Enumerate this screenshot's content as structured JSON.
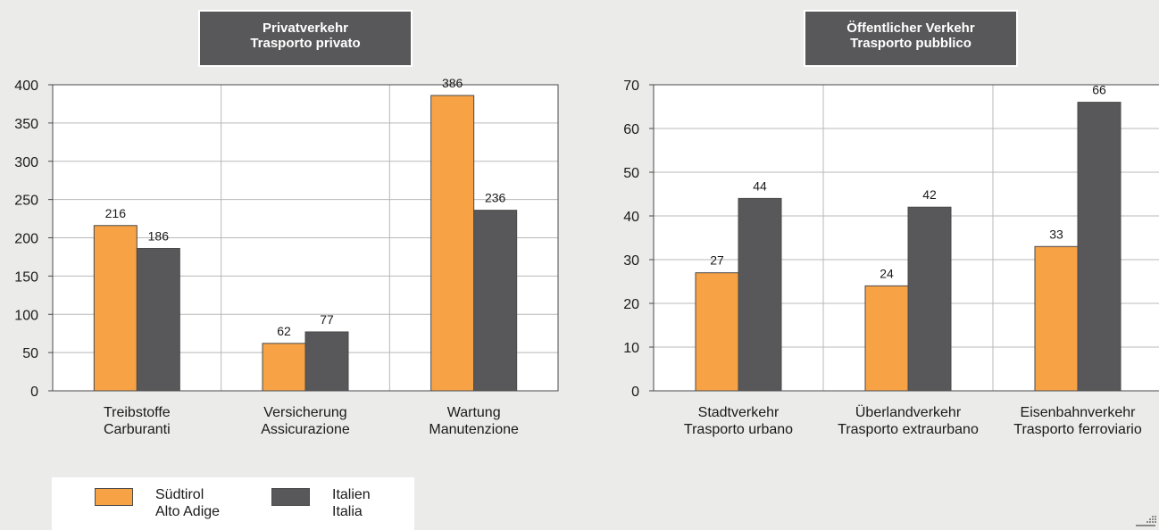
{
  "colors": {
    "sudtirol": "#f8a246",
    "italien": "#58585a",
    "title_box": "#58585a",
    "plot_bg": "#ffffff",
    "axis": "#4a4a4a",
    "grid": "#b8b8b8"
  },
  "legend": {
    "items": [
      {
        "line1": "Südtirol",
        "line2": "Alto Adige",
        "color": "#f8a246"
      },
      {
        "line1": "Italien",
        "line2": "Italia",
        "color": "#58585a"
      }
    ]
  },
  "chart_data": [
    {
      "type": "bar",
      "title": [
        "Privatverkehr",
        "Trasporto privato"
      ],
      "categories": [
        [
          "Treibstoffe",
          "Carburanti"
        ],
        [
          "Versicherung",
          "Assicurazione"
        ],
        [
          "Wartung",
          "Manutenzione"
        ]
      ],
      "series": [
        {
          "name": "Südtirol / Alto Adige",
          "values": [
            216,
            62,
            386
          ]
        },
        {
          "name": "Italien / Italia",
          "values": [
            186,
            77,
            236
          ]
        }
      ],
      "ylim": [
        0,
        400
      ],
      "yticks": [
        0,
        50,
        100,
        150,
        200,
        250,
        300,
        350,
        400
      ],
      "grid": true,
      "legend_position": "bottom-left"
    },
    {
      "type": "bar",
      "title": [
        "Öffentlicher Verkehr",
        "Trasporto pubblico"
      ],
      "categories": [
        [
          "Stadtverkehr",
          "Trasporto urbano"
        ],
        [
          "Überlandverkehr",
          "Trasporto extraurbano"
        ],
        [
          "Eisenbahnverkehr",
          "Trasporto ferroviario"
        ]
      ],
      "series": [
        {
          "name": "Südtirol / Alto Adige",
          "values": [
            27,
            24,
            33
          ]
        },
        {
          "name": "Italien / Italia",
          "values": [
            44,
            42,
            66
          ]
        }
      ],
      "ylim": [
        0,
        70
      ],
      "yticks": [
        0,
        10,
        20,
        30,
        40,
        50,
        60,
        70
      ],
      "grid": true,
      "legend_position": "bottom-left"
    }
  ]
}
